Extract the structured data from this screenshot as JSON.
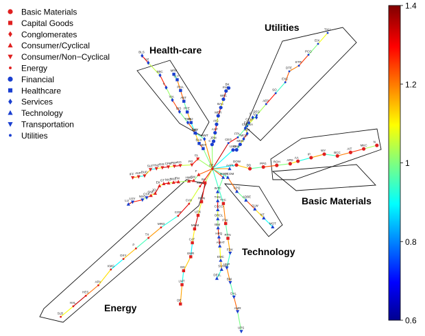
{
  "chart_data": {
    "type": "network",
    "legend": [
      {
        "sector": "Basic Materials",
        "marker": "circle",
        "color": "#e02020"
      },
      {
        "sector": "Capital Goods",
        "marker": "square",
        "color": "#e02020"
      },
      {
        "sector": "Conglomerates",
        "marker": "diamond",
        "color": "#e02020"
      },
      {
        "sector": "Consumer/Cyclical",
        "marker": "triangle-up",
        "color": "#e02020"
      },
      {
        "sector": "Consumer/Non−Cyclical",
        "marker": "triangle-down",
        "color": "#e02020"
      },
      {
        "sector": "Energy",
        "marker": "dot",
        "color": "#e02020"
      },
      {
        "sector": "Financial",
        "marker": "circle",
        "color": "#1a3fd0"
      },
      {
        "sector": "Healthcare",
        "marker": "square",
        "color": "#1a3fd0"
      },
      {
        "sector": "Services",
        "marker": "diamond",
        "color": "#1a3fd0"
      },
      {
        "sector": "Technology",
        "marker": "triangle-up",
        "color": "#1a3fd0"
      },
      {
        "sector": "Transportation",
        "marker": "triangle-down",
        "color": "#1a3fd0"
      },
      {
        "sector": "Utilities",
        "marker": "dot",
        "color": "#1a3fd0"
      }
    ],
    "cluster_labels": [
      "Health-care",
      "Utilities",
      "Basic Materials",
      "Technology",
      "Energy"
    ],
    "colorbar": {
      "min": 0.6,
      "max": 1.4,
      "ticks": [
        "0.6",
        "0.8",
        "1",
        "1.2",
        "1.4"
      ],
      "colormap": "jet"
    },
    "hub": "GE",
    "nodes": [
      {
        "id": "GE",
        "sector": "Conglomerates"
      },
      {
        "id": "BMY",
        "sector": "Healthcare"
      },
      {
        "id": "JNJ",
        "sector": "Healthcare"
      },
      {
        "id": "PFE",
        "sector": "Healthcare"
      },
      {
        "id": "MRK",
        "sector": "Healthcare"
      },
      {
        "id": "LLY",
        "sector": "Healthcare"
      },
      {
        "id": "ABT",
        "sector": "Healthcare"
      },
      {
        "id": "PHA",
        "sector": "Healthcare"
      },
      {
        "id": "MDT",
        "sector": "Healthcare"
      },
      {
        "id": "BAX",
        "sector": "Healthcare"
      },
      {
        "id": "CL",
        "sector": "Consumer/Non−Cyclical"
      },
      {
        "id": "PG",
        "sector": "Consumer/Non−Cyclical"
      },
      {
        "id": "KO",
        "sector": "Consumer/Non−Cyclical"
      },
      {
        "id": "PEP",
        "sector": "Consumer/Non−Cyclical"
      },
      {
        "id": "CPB",
        "sector": "Consumer/Non−Cyclical"
      },
      {
        "id": "GIS",
        "sector": "Consumer/Non−Cyclical"
      },
      {
        "id": "HNZ",
        "sector": "Consumer/Non−Cyclical"
      },
      {
        "id": "SLE",
        "sector": "Consumer/Non−Cyclical"
      },
      {
        "id": "BUD",
        "sector": "Consumer/Non−Cyclical"
      },
      {
        "id": "AVP",
        "sector": "Consumer/Non−Cyclical"
      },
      {
        "id": "IFF",
        "sector": "Consumer/Non−Cyclical"
      },
      {
        "id": "EXC",
        "sector": "Utilities"
      },
      {
        "id": "ETR",
        "sector": "Utilities"
      },
      {
        "id": "ED",
        "sector": "Utilities"
      },
      {
        "id": "DTE",
        "sector": "Utilities"
      },
      {
        "id": "EIX",
        "sector": "Utilities"
      },
      {
        "id": "PCG",
        "sector": "Utilities"
      },
      {
        "id": "AEP",
        "sector": "Utilities"
      },
      {
        "id": "SO",
        "sector": "Utilities"
      },
      {
        "id": "PEG",
        "sector": "Utilities"
      },
      {
        "id": "FPL",
        "sector": "Utilities"
      },
      {
        "id": "TXU",
        "sector": "Utilities"
      },
      {
        "id": "CEG",
        "sector": "Utilities"
      },
      {
        "id": "AA",
        "sector": "Basic Materials"
      },
      {
        "id": "DOW",
        "sector": "Basic Materials"
      },
      {
        "id": "DD",
        "sector": "Basic Materials"
      },
      {
        "id": "IP",
        "sector": "Basic Materials"
      },
      {
        "id": "WY",
        "sector": "Basic Materials"
      },
      {
        "id": "BCC",
        "sector": "Basic Materials"
      },
      {
        "id": "AIT",
        "sector": "Basic Materials"
      },
      {
        "id": "PPG",
        "sector": "Basic Materials"
      },
      {
        "id": "ROH",
        "sector": "Basic Materials"
      },
      {
        "id": "APD",
        "sector": "Basic Materials"
      },
      {
        "id": "MKC",
        "sector": "Basic Materials"
      },
      {
        "id": "N",
        "sector": "Basic Materials"
      },
      {
        "id": "XOM",
        "sector": "Energy"
      },
      {
        "id": "CVX",
        "sector": "Energy"
      },
      {
        "id": "COP",
        "sector": "Energy"
      },
      {
        "id": "SLB",
        "sector": "Energy"
      },
      {
        "id": "HAL",
        "sector": "Energy"
      },
      {
        "id": "APA",
        "sector": "Energy"
      },
      {
        "id": "KMG",
        "sector": "Energy"
      },
      {
        "id": "OXY",
        "sector": "Energy"
      },
      {
        "id": "MRO",
        "sector": "Energy"
      },
      {
        "id": "TX",
        "sector": "Energy"
      },
      {
        "id": "P",
        "sector": "Energy"
      },
      {
        "id": "HES",
        "sector": "Energy"
      },
      {
        "id": "INTC",
        "sector": "Technology"
      },
      {
        "id": "MSFT",
        "sector": "Technology"
      },
      {
        "id": "IBM",
        "sector": "Technology"
      },
      {
        "id": "HPQ",
        "sector": "Technology"
      },
      {
        "id": "TXN",
        "sector": "Technology"
      },
      {
        "id": "CSCO",
        "sector": "Technology"
      },
      {
        "id": "ORCL",
        "sector": "Technology"
      },
      {
        "id": "AMAT",
        "sector": "Technology"
      },
      {
        "id": "EMC",
        "sector": "Technology"
      },
      {
        "id": "LU",
        "sector": "Technology"
      },
      {
        "id": "NT",
        "sector": "Technology"
      },
      {
        "id": "MOT",
        "sector": "Technology"
      },
      {
        "id": "SUNW",
        "sector": "Technology"
      },
      {
        "id": "DELL",
        "sector": "Technology"
      },
      {
        "id": "AAPL",
        "sector": "Technology"
      },
      {
        "id": "QCOM",
        "sector": "Technology"
      },
      {
        "id": "CPQ",
        "sector": "Technology"
      },
      {
        "id": "ADBE",
        "sector": "Technology"
      },
      {
        "id": "GLW",
        "sector": "Technology"
      },
      {
        "id": "C",
        "sector": "Financial"
      },
      {
        "id": "JPM",
        "sector": "Financial"
      },
      {
        "id": "AXP",
        "sector": "Financial"
      },
      {
        "id": "AIG",
        "sector": "Financial"
      },
      {
        "id": "MER",
        "sector": "Financial"
      },
      {
        "id": "BAC",
        "sector": "Financial"
      },
      {
        "id": "WFC",
        "sector": "Financial"
      },
      {
        "id": "FNM",
        "sector": "Financial"
      },
      {
        "id": "BK",
        "sector": "Financial"
      },
      {
        "id": "USB",
        "sector": "Financial"
      },
      {
        "id": "ONE",
        "sector": "Financial"
      },
      {
        "id": "MMC",
        "sector": "Financial"
      },
      {
        "id": "WMT",
        "sector": "Services"
      },
      {
        "id": "HD",
        "sector": "Services"
      },
      {
        "id": "TWX",
        "sector": "Services"
      },
      {
        "id": "DIS",
        "sector": "Services"
      },
      {
        "id": "VIA",
        "sector": "Services"
      },
      {
        "id": "T",
        "sector": "Services"
      },
      {
        "id": "SBC",
        "sector": "Services"
      },
      {
        "id": "VZ",
        "sector": "Services"
      },
      {
        "id": "BLS",
        "sector": "Services"
      },
      {
        "id": "MCD",
        "sector": "Services"
      },
      {
        "id": "TGT",
        "sector": "Services"
      },
      {
        "id": "CMCSA",
        "sector": "Services"
      },
      {
        "id": "CCU",
        "sector": "Services"
      },
      {
        "id": "S",
        "sector": "Services"
      },
      {
        "id": "Q",
        "sector": "Services"
      },
      {
        "id": "FDX",
        "sector": "Transportation"
      },
      {
        "id": "UNP",
        "sector": "Transportation"
      },
      {
        "id": "BNI",
        "sector": "Transportation"
      },
      {
        "id": "DAL",
        "sector": "Transportation"
      },
      {
        "id": "AMR",
        "sector": "Transportation"
      },
      {
        "id": "UPS",
        "sector": "Transportation"
      },
      {
        "id": "CSX",
        "sector": "Transportation"
      },
      {
        "id": "NSC",
        "sector": "Transportation"
      },
      {
        "id": "LUV",
        "sector": "Transportation"
      },
      {
        "id": "BA",
        "sector": "Capital Goods"
      },
      {
        "id": "HON",
        "sector": "Capital Goods"
      },
      {
        "id": "UTX",
        "sector": "Capital Goods"
      },
      {
        "id": "MMM",
        "sector": "Capital Goods"
      },
      {
        "id": "CAT",
        "sector": "Capital Goods"
      },
      {
        "id": "EMR",
        "sector": "Capital Goods"
      },
      {
        "id": "GD",
        "sector": "Capital Goods"
      },
      {
        "id": "LMT",
        "sector": "Capital Goods"
      },
      {
        "id": "DE",
        "sector": "Capital Goods"
      },
      {
        "id": "TYC",
        "sector": "Capital Goods"
      },
      {
        "id": "ITW",
        "sector": "Capital Goods"
      },
      {
        "id": "RTN",
        "sector": "Capital Goods"
      },
      {
        "id": "F",
        "sector": "Consumer/Cyclical"
      },
      {
        "id": "GM",
        "sector": "Consumer/Cyclical"
      },
      {
        "id": "HMC",
        "sector": "Consumer/Cyclical"
      },
      {
        "id": "TM",
        "sector": "Consumer/Cyclical"
      },
      {
        "id": "NKE",
        "sector": "Consumer/Cyclical"
      },
      {
        "id": "MAT",
        "sector": "Consumer/Cyclical"
      },
      {
        "id": "GT",
        "sector": "Consumer/Cyclical"
      },
      {
        "id": "EK",
        "sector": "Consumer/Cyclical"
      },
      {
        "id": "JCI",
        "sector": "Consumer/Cyclical"
      },
      {
        "id": "SNE",
        "sector": "Consumer/Cyclical"
      }
    ]
  }
}
